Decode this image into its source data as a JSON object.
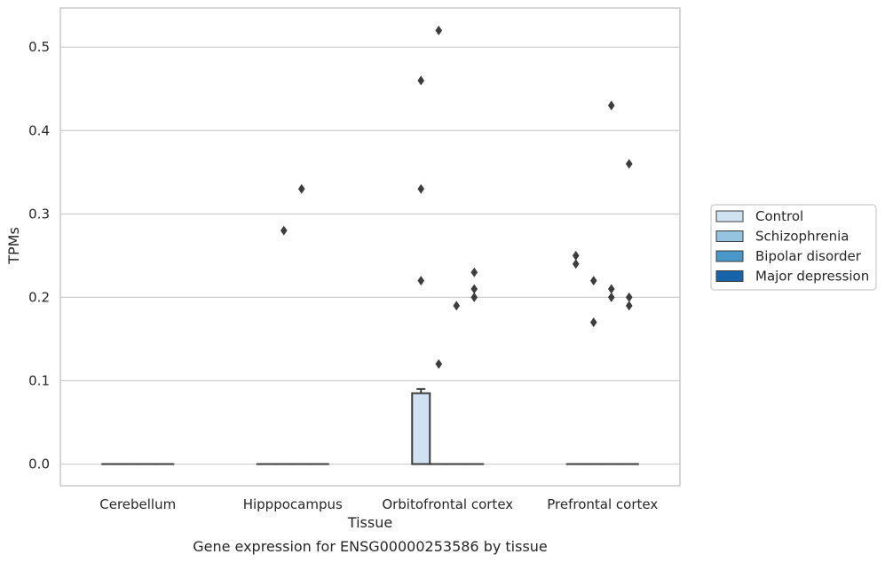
{
  "chart_data": {
    "type": "box",
    "title": "",
    "caption": "Gene expression for ENSG00000253586 by tissue",
    "xlabel": "Tissue",
    "ylabel": "TPMs",
    "ylim": [
      -0.026,
      0.547
    ],
    "yticks": [
      0.0,
      0.1,
      0.2,
      0.3,
      0.4,
      0.5
    ],
    "ytick_labels": [
      "0.0",
      "0.1",
      "0.2",
      "0.3",
      "0.4",
      "0.5"
    ],
    "grid": "horizontal",
    "categories": [
      "Cerebellum",
      "Hipppocampus",
      "Orbitofrontal cortex",
      "Prefrontal cortex"
    ],
    "legend": {
      "placement": "right",
      "entries": [
        "Control",
        "Schizophrenia",
        "Bipolar disorder",
        "Major depression"
      ]
    },
    "series": [
      {
        "name": "Control",
        "color": "#d0e1f2",
        "boxes": [
          {
            "category": "Cerebellum",
            "q1": 0,
            "median": 0,
            "q3": 0,
            "whisker_low": 0,
            "whisker_high": 0,
            "outliers": []
          },
          {
            "category": "Hipppocampus",
            "q1": 0,
            "median": 0,
            "q3": 0,
            "whisker_low": 0,
            "whisker_high": 0,
            "outliers": []
          },
          {
            "category": "Orbitofrontal cortex",
            "q1": 0,
            "median": 0,
            "q3": 0.085,
            "whisker_low": 0,
            "whisker_high": 0.09,
            "outliers": [
              0.22,
              0.33,
              0.46
            ]
          },
          {
            "category": "Prefrontal cortex",
            "q1": 0,
            "median": 0,
            "q3": 0,
            "whisker_low": 0,
            "whisker_high": 0,
            "outliers": [
              0.24,
              0.25
            ]
          }
        ]
      },
      {
        "name": "Schizophrenia",
        "color": "#94c4df",
        "boxes": [
          {
            "category": "Cerebellum",
            "q1": 0,
            "median": 0,
            "q3": 0,
            "whisker_low": 0,
            "whisker_high": 0,
            "outliers": []
          },
          {
            "category": "Hipppocampus",
            "q1": 0,
            "median": 0,
            "q3": 0,
            "whisker_low": 0,
            "whisker_high": 0,
            "outliers": [
              0.28
            ]
          },
          {
            "category": "Orbitofrontal cortex",
            "q1": 0,
            "median": 0,
            "q3": 0,
            "whisker_low": 0,
            "whisker_high": 0,
            "outliers": [
              0.12,
              0.52
            ]
          },
          {
            "category": "Prefrontal cortex",
            "q1": 0,
            "median": 0,
            "q3": 0,
            "whisker_low": 0,
            "whisker_high": 0,
            "outliers": [
              0.17,
              0.22
            ]
          }
        ]
      },
      {
        "name": "Bipolar disorder",
        "color": "#4a98c9",
        "boxes": [
          {
            "category": "Cerebellum",
            "q1": 0,
            "median": 0,
            "q3": 0,
            "whisker_low": 0,
            "whisker_high": 0,
            "outliers": []
          },
          {
            "category": "Hipppocampus",
            "q1": 0,
            "median": 0,
            "q3": 0,
            "whisker_low": 0,
            "whisker_high": 0,
            "outliers": [
              0.33
            ]
          },
          {
            "category": "Orbitofrontal cortex",
            "q1": 0,
            "median": 0,
            "q3": 0,
            "whisker_low": 0,
            "whisker_high": 0,
            "outliers": [
              0.19
            ]
          },
          {
            "category": "Prefrontal cortex",
            "q1": 0,
            "median": 0,
            "q3": 0,
            "whisker_low": 0,
            "whisker_high": 0,
            "outliers": [
              0.2,
              0.21,
              0.43
            ]
          }
        ]
      },
      {
        "name": "Major depression",
        "color": "#1764ab",
        "boxes": [
          {
            "category": "Cerebellum",
            "q1": 0,
            "median": 0,
            "q3": 0,
            "whisker_low": 0,
            "whisker_high": 0,
            "outliers": []
          },
          {
            "category": "Hipppocampus",
            "q1": 0,
            "median": 0,
            "q3": 0,
            "whisker_low": 0,
            "whisker_high": 0,
            "outliers": []
          },
          {
            "category": "Orbitofrontal cortex",
            "q1": 0,
            "median": 0,
            "q3": 0,
            "whisker_low": 0,
            "whisker_high": 0,
            "outliers": [
              0.2,
              0.21,
              0.23
            ]
          },
          {
            "category": "Prefrontal cortex",
            "q1": 0,
            "median": 0,
            "q3": 0,
            "whisker_low": 0,
            "whisker_high": 0,
            "outliers": [
              0.19,
              0.2,
              0.36
            ]
          }
        ]
      }
    ]
  },
  "colors": {
    "grid": "#cccccc",
    "frame": "#cccccc",
    "edge": "#3d3d3d",
    "outlier": "#3d3d3d"
  }
}
